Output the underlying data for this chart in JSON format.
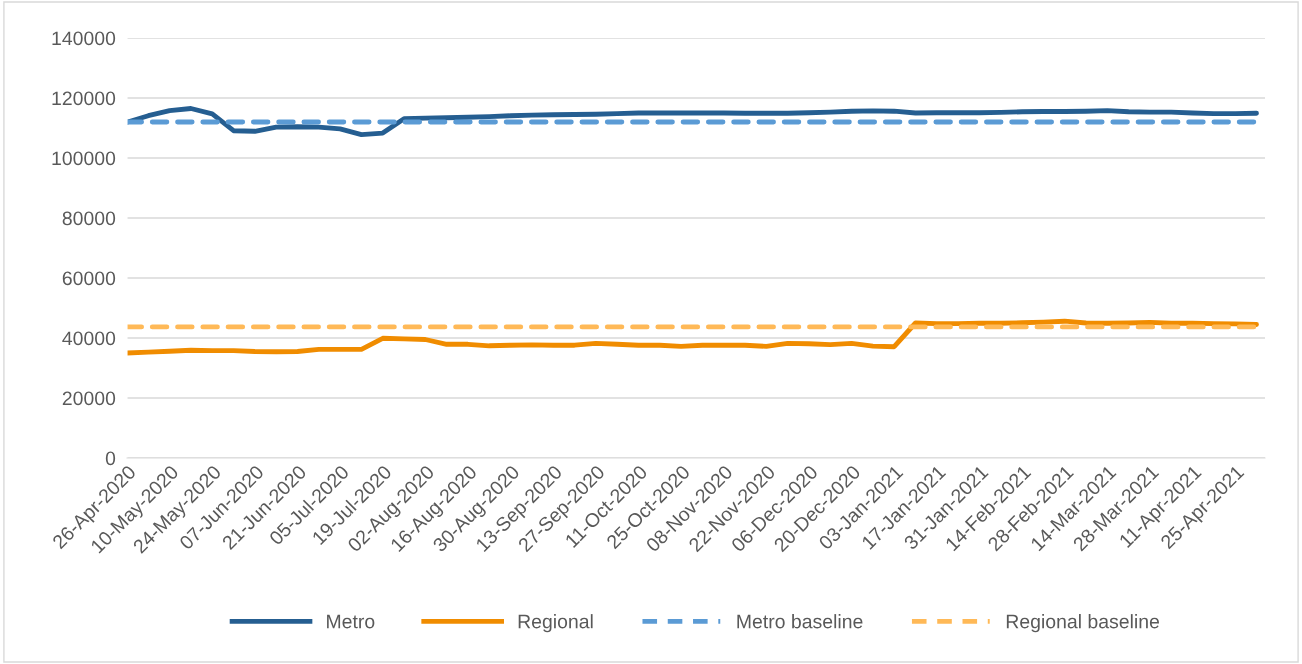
{
  "chart_data": {
    "type": "line",
    "categories": [
      "26-Apr-2020",
      null,
      "10-May-2020",
      null,
      "24-May-2020",
      null,
      "07-Jun-2020",
      null,
      "21-Jun-2020",
      null,
      "05-Jul-2020",
      null,
      "19-Jul-2020",
      null,
      "02-Aug-2020",
      null,
      "16-Aug-2020",
      null,
      "30-Aug-2020",
      null,
      "13-Sep-2020",
      null,
      "27-Sep-2020",
      null,
      "11-Oct-2020",
      null,
      "25-Oct-2020",
      null,
      "08-Nov-2020",
      null,
      "22-Nov-2020",
      null,
      "06-Dec-2020",
      null,
      "20-Dec-2020",
      null,
      "03-Jan-2021",
      null,
      "17-Jan-2021",
      null,
      "31-Jan-2021",
      null,
      "14-Feb-2021",
      null,
      "28-Feb-2021",
      null,
      "14-Mar-2021",
      null,
      "28-Mar-2021",
      null,
      "11-Apr-2021",
      null,
      "25-Apr-2021",
      null
    ],
    "series": [
      {
        "name": "Metro",
        "color": "#255e91",
        "line_style": "solid",
        "values": [
          111900,
          114100,
          115800,
          116500,
          114700,
          109100,
          108900,
          110300,
          110400,
          110300,
          109700,
          107800,
          108300,
          113100,
          113300,
          113400,
          113600,
          113800,
          114100,
          114300,
          114400,
          114500,
          114600,
          114800,
          115000,
          115000,
          115000,
          115000,
          115000,
          114900,
          114900,
          114900,
          115100,
          115300,
          115600,
          115700,
          115600,
          115000,
          115100,
          115100,
          115100,
          115200,
          115400,
          115500,
          115500,
          115600,
          115800,
          115400,
          115300,
          115300,
          115000,
          114800,
          114800,
          114900
        ]
      },
      {
        "name": "Regional",
        "color": "#f08c00",
        "line_style": "solid",
        "values": [
          35000,
          35300,
          35600,
          35900,
          35800,
          35800,
          35500,
          35400,
          35500,
          36200,
          36200,
          36200,
          39900,
          39700,
          39500,
          37900,
          37900,
          37400,
          37600,
          37700,
          37600,
          37600,
          38200,
          37900,
          37600,
          37600,
          37200,
          37600,
          37600,
          37600,
          37200,
          38200,
          38100,
          37800,
          38200,
          37300,
          37100,
          45000,
          44800,
          44800,
          44900,
          44900,
          45100,
          45300,
          45600,
          45000,
          44900,
          45000,
          45200,
          44900,
          44900,
          44800,
          44700,
          44500
        ]
      },
      {
        "name": "Metro baseline",
        "color": "#5b9bd5",
        "line_style": "dashed",
        "values": [
          112000,
          112000,
          112000,
          112000,
          112000,
          112000,
          112000,
          112000,
          112000,
          112000,
          112000,
          112000,
          112000,
          112000,
          112000,
          112000,
          112000,
          112000,
          112000,
          112000,
          112000,
          112000,
          112000,
          112000,
          112000,
          112000,
          112000,
          112000,
          112000,
          112000,
          112000,
          112000,
          112000,
          112000,
          112000,
          112000,
          112000,
          112000,
          112000,
          112000,
          112000,
          112000,
          112000,
          112000,
          112000,
          112000,
          112000,
          112000,
          112000,
          112000,
          112000,
          112000,
          112000,
          112000
        ]
      },
      {
        "name": "Regional baseline",
        "color": "#ffb957",
        "line_style": "dashed",
        "values": [
          43700,
          43700,
          43700,
          43700,
          43700,
          43700,
          43700,
          43700,
          43700,
          43700,
          43700,
          43700,
          43700,
          43700,
          43700,
          43700,
          43700,
          43700,
          43700,
          43700,
          43700,
          43700,
          43700,
          43700,
          43700,
          43700,
          43700,
          43700,
          43700,
          43700,
          43700,
          43700,
          43700,
          43700,
          43700,
          43700,
          43700,
          43700,
          43700,
          43700,
          43700,
          43700,
          43700,
          43700,
          43700,
          43700,
          43700,
          43700,
          43700,
          43700,
          43700,
          43700,
          43700,
          43700
        ]
      }
    ],
    "ylim": [
      0,
      140000
    ],
    "yticks": [
      0,
      20000,
      40000,
      60000,
      80000,
      100000,
      120000,
      140000
    ],
    "grid": "y",
    "legend": "bottom",
    "marker": "none"
  }
}
